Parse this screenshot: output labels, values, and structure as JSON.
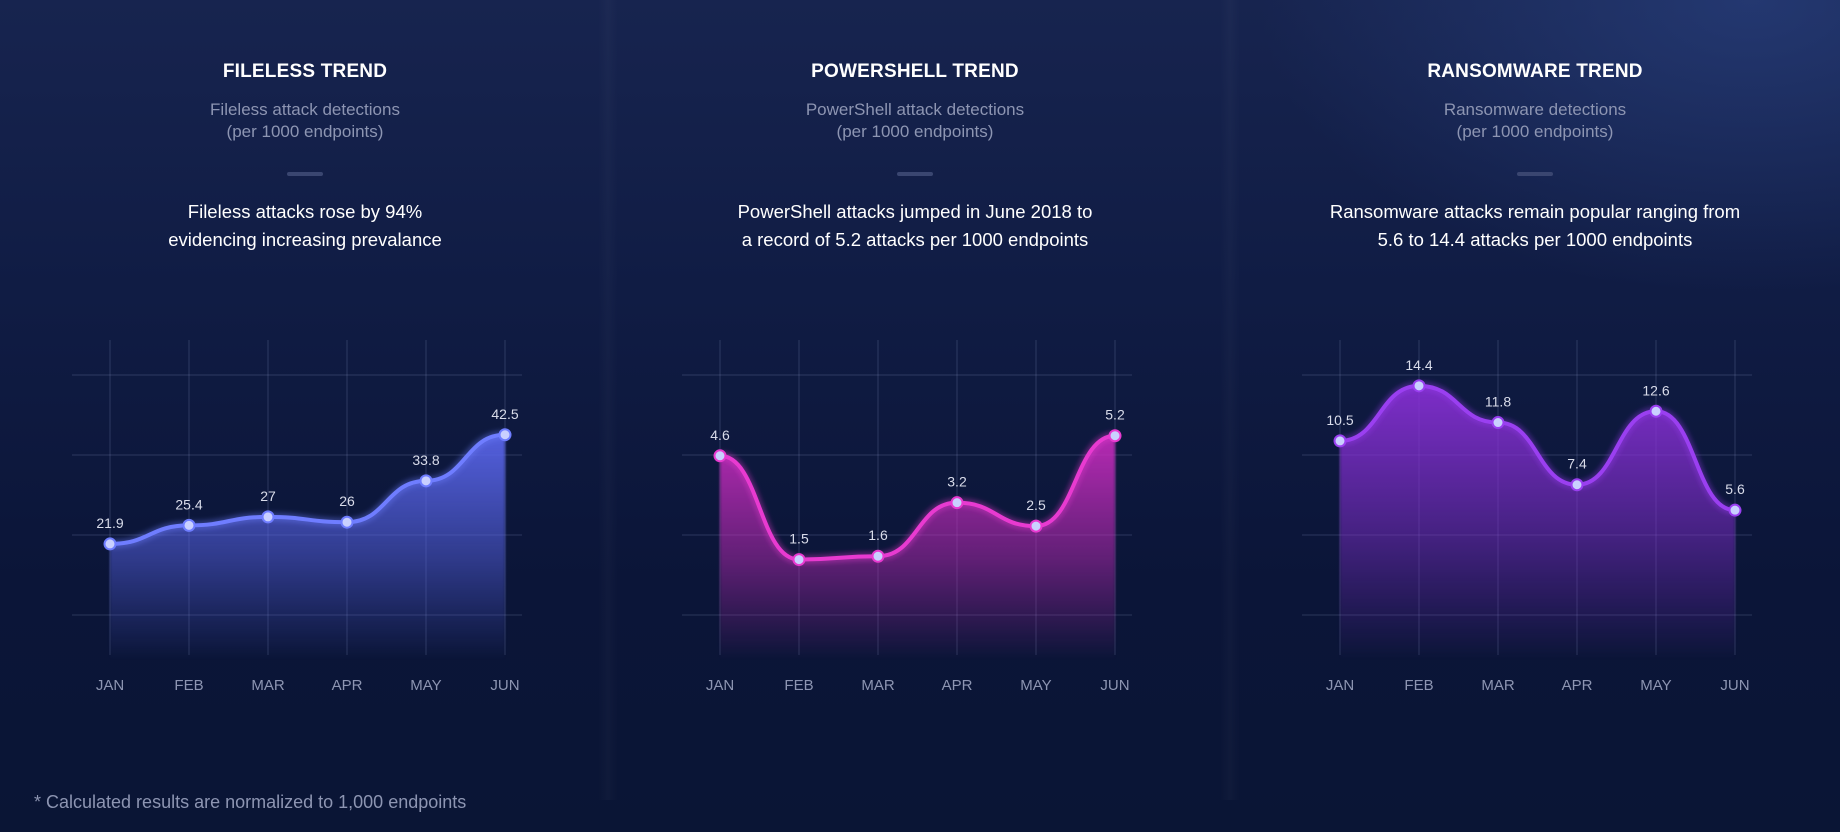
{
  "footnote": "* Calculated results are normalized to 1,000 endpoints",
  "panels": [
    {
      "title": "FILELESS TREND",
      "subtitle_lines": [
        "Fileless attack detections",
        "(per 1000 endpoints)"
      ],
      "desc_lines": [
        "Fileless attacks rose by 94%",
        "evidencing increasing prevalance"
      ]
    },
    {
      "title": "POWERSHELL TREND",
      "subtitle_lines": [
        "PowerShell attack detections",
        "(per 1000 endpoints)"
      ],
      "desc_lines": [
        "PowerShell attacks jumped in June 2018 to",
        "a record of 5.2 attacks per 1000 endpoints"
      ]
    },
    {
      "title": "RANSOMWARE TREND",
      "subtitle_lines": [
        "Ransomware detections",
        "(per 1000 endpoints)"
      ],
      "desc_lines": [
        "Ransomware attacks remain popular ranging from",
        "5.6 to 14.4 attacks per 1000 endpoints"
      ]
    }
  ],
  "chart_data": [
    {
      "type": "area",
      "title": "FILELESS TREND",
      "categories": [
        "JAN",
        "FEB",
        "MAR",
        "APR",
        "MAY",
        "JUN"
      ],
      "values": [
        21.9,
        25.4,
        27,
        26,
        33.8,
        42.5
      ],
      "ylim": [
        0,
        60
      ],
      "grid": true,
      "color": "#6f7dff",
      "fill_color": "#5c68f0"
    },
    {
      "type": "area",
      "title": "POWERSHELL TREND",
      "categories": [
        "JAN",
        "FEB",
        "MAR",
        "APR",
        "MAY",
        "JUN"
      ],
      "values": [
        4.6,
        1.5,
        1.6,
        3.2,
        2.5,
        5.2
      ],
      "ylim": [
        -1.5,
        8
      ],
      "grid": true,
      "color": "#e83ad0",
      "fill_color": "#c92cc0"
    },
    {
      "type": "area",
      "title": "RANSOMWARE TREND",
      "categories": [
        "JAN",
        "FEB",
        "MAR",
        "APR",
        "MAY",
        "JUN"
      ],
      "values": [
        10.5,
        14.4,
        11.8,
        7.4,
        12.6,
        5.6
      ],
      "ylim": [
        -5,
        17.5
      ],
      "grid": true,
      "color": "#9a3ff0",
      "fill_color": "#8a30d8"
    }
  ]
}
